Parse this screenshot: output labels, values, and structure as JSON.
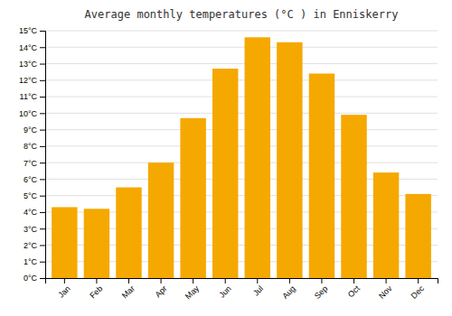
{
  "chart_data": {
    "type": "bar",
    "title": "Average monthly temperatures (°C ) in Enniskerry",
    "categories": [
      "Jan",
      "Feb",
      "Mar",
      "Apr",
      "May",
      "Jun",
      "Jul",
      "Aug",
      "Sep",
      "Oct",
      "Nov",
      "Dec"
    ],
    "values": [
      4.3,
      4.2,
      5.5,
      7.0,
      9.7,
      12.7,
      14.6,
      14.3,
      12.4,
      9.9,
      6.4,
      5.1
    ],
    "color": "#F5A800",
    "ylim": [
      0,
      15
    ],
    "yticks": [
      {
        "value": 0,
        "label": "0°C"
      },
      {
        "value": 1,
        "label": "1°C"
      },
      {
        "value": 2,
        "label": "2°C"
      },
      {
        "value": 3,
        "label": "3°C"
      },
      {
        "value": 4,
        "label": "4°C"
      },
      {
        "value": 5,
        "label": "5°C"
      },
      {
        "value": 6,
        "label": "6°C"
      },
      {
        "value": 7,
        "label": "7°C"
      },
      {
        "value": 8,
        "label": "8°C"
      },
      {
        "value": 9,
        "label": "9°C"
      },
      {
        "value": 10,
        "label": "10°C"
      },
      {
        "value": 11,
        "label": "11°C"
      },
      {
        "value": 12,
        "label": "12°C"
      },
      {
        "value": 13,
        "label": "13°C"
      },
      {
        "value": 14,
        "label": "14°C"
      },
      {
        "value": 15,
        "label": "15°C"
      }
    ],
    "grid": true
  }
}
